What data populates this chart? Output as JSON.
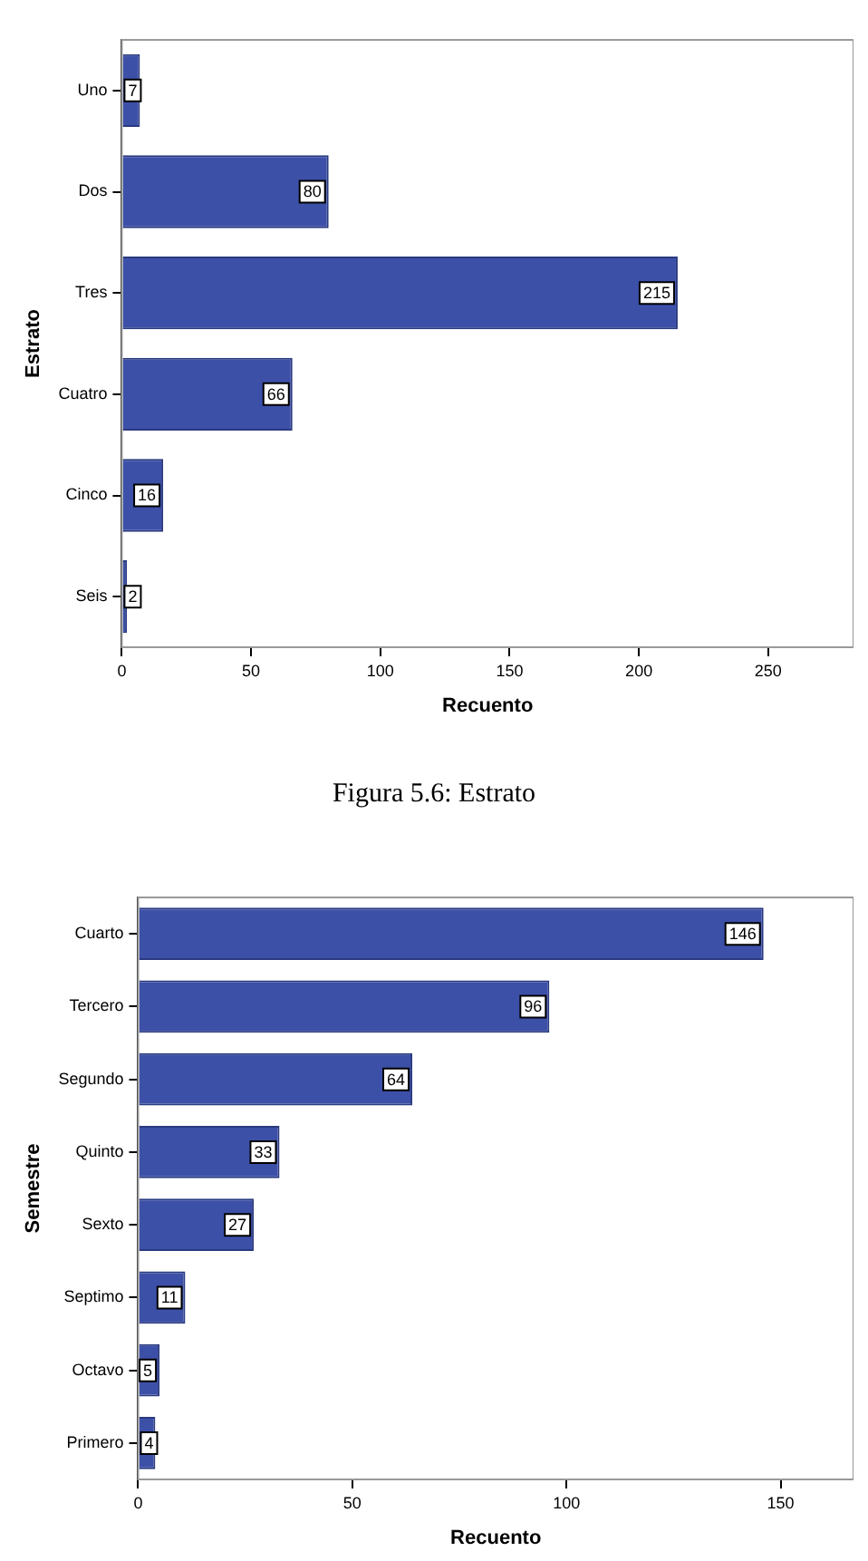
{
  "chart_data": [
    {
      "type": "bar",
      "orientation": "horizontal",
      "xlabel": "Recuento",
      "ylabel": "Estrato",
      "categories": [
        "Uno",
        "Dos",
        "Tres",
        "Cuatro",
        "Cinco",
        "Seis"
      ],
      "values": [
        7,
        80,
        215,
        66,
        16,
        2
      ],
      "color": "#3d50a8",
      "xlim": [
        0,
        283
      ],
      "xticks": [
        0,
        50,
        100,
        150,
        200,
        250
      ],
      "grid": false,
      "legend": false,
      "data_labels": true,
      "annotations": [
        "Figura 5.6: Estrato"
      ]
    },
    {
      "type": "bar",
      "orientation": "horizontal",
      "xlabel": "Recuento",
      "ylabel": "Semestre",
      "categories": [
        "Cuarto",
        "Tercero",
        "Segundo",
        "Quinto",
        "Sexto",
        "Septimo",
        "Octavo",
        "Primero"
      ],
      "values": [
        146,
        96,
        64,
        33,
        27,
        11,
        5,
        4
      ],
      "color": "#3d50a8",
      "xlim": [
        0,
        167
      ],
      "xticks": [
        0,
        50,
        100,
        150
      ],
      "grid": false,
      "legend": false,
      "data_labels": true
    }
  ]
}
